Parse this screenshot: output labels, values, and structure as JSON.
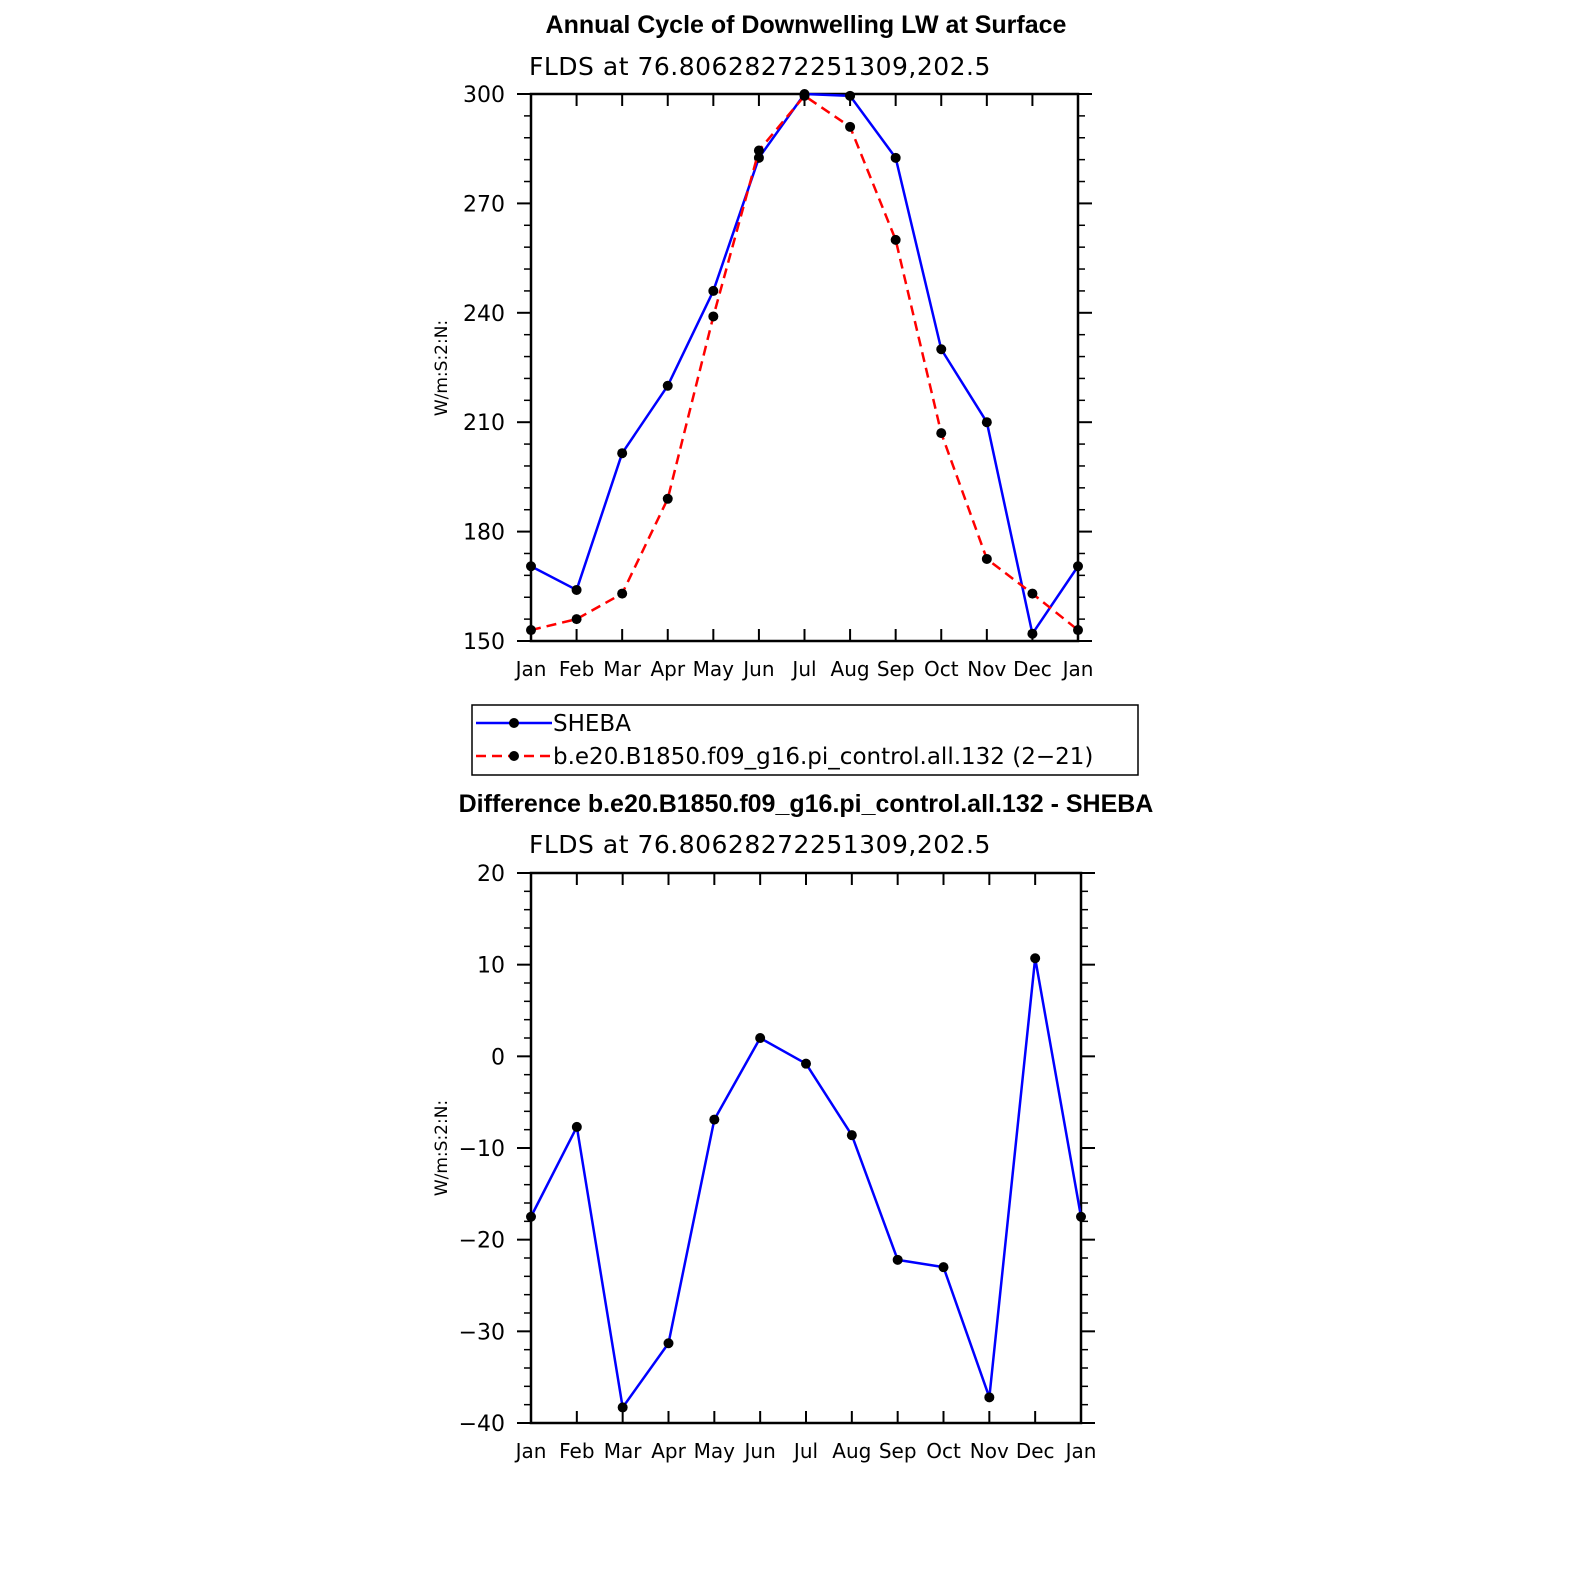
{
  "chart_data": [
    {
      "type": "line",
      "title": "Annual Cycle of Downwelling LW at Surface",
      "subtitle": "FLDS at 76.80628272251309,202.5",
      "ylabel": "W/m:S:2:N:",
      "xlabel": "",
      "ylim": [
        150,
        300
      ],
      "yticks": [
        150,
        180,
        210,
        240,
        270,
        300
      ],
      "ytick_labels": [
        "150",
        "180",
        "210",
        "240",
        "270",
        "300"
      ],
      "x_tick_labels": [
        "Jan",
        "Feb",
        "Mar",
        "Apr",
        "May",
        "Jun",
        "Jul",
        "Aug",
        "Sep",
        "Oct",
        "Nov",
        "Dec",
        "Jan"
      ],
      "grid": false,
      "legend_position": "below",
      "series": [
        {
          "name": "SHEBA",
          "color": "#0000ff",
          "dash": "solid",
          "values": [
            170.5,
            164,
            201.5,
            220,
            246,
            282.5,
            300,
            299.5,
            282.5,
            230,
            210,
            152,
            170.5
          ]
        },
        {
          "name": "b.e20.B1850.f09_g16.pi_control.all.132 (2−21)",
          "color": "#ff0000",
          "dash": "dashed",
          "values": [
            153,
            156,
            163,
            189,
            239,
            284.5,
            299.5,
            291,
            260,
            207,
            172.5,
            163,
            153
          ]
        }
      ]
    },
    {
      "type": "line",
      "title": "Difference b.e20.B1850.f09_g16.pi_control.all.132 - SHEBA",
      "subtitle": "FLDS at 76.80628272251309,202.5",
      "ylabel": "W/m:S:2:N:",
      "xlabel": "",
      "ylim": [
        -40,
        20
      ],
      "yticks": [
        -40,
        -30,
        -20,
        -10,
        0,
        10,
        20
      ],
      "ytick_labels": [
        "−40",
        "−30",
        "−20",
        "−10",
        "0",
        "10",
        "20"
      ],
      "x_tick_labels": [
        "Jan",
        "Feb",
        "Mar",
        "Apr",
        "May",
        "Jun",
        "Jul",
        "Aug",
        "Sep",
        "Oct",
        "Nov",
        "Dec",
        "Jan"
      ],
      "grid": false,
      "series": [
        {
          "color": "#0000ff",
          "dash": "solid",
          "values": [
            -17.5,
            -7.7,
            -38.3,
            -31.3,
            -6.9,
            2,
            -0.8,
            -8.6,
            -22.2,
            -23,
            -37.2,
            10.7,
            -17.5
          ]
        }
      ]
    }
  ]
}
